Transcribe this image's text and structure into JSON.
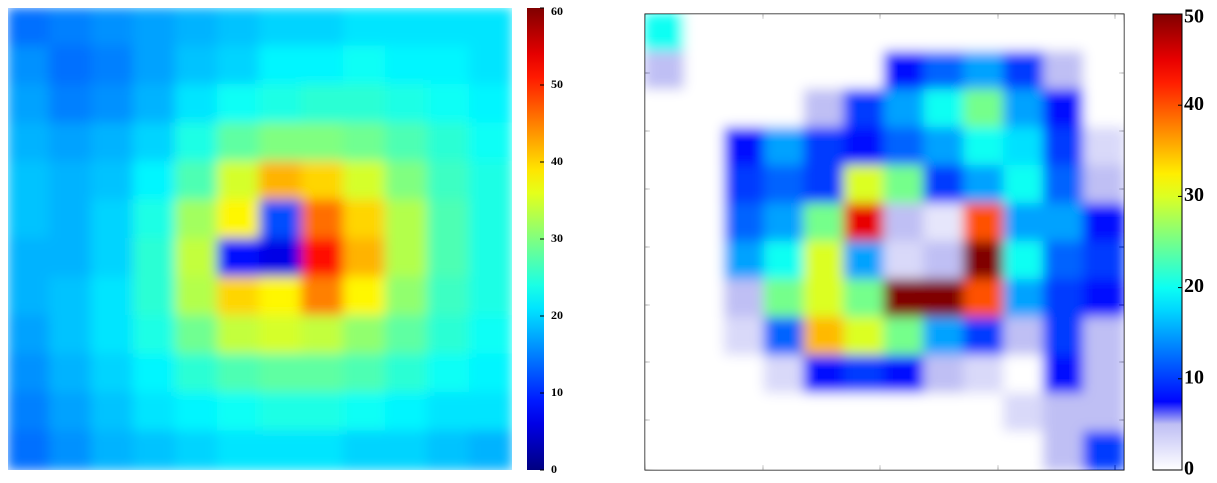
{
  "chart_data": [
    {
      "type": "heatmap",
      "colormap": "jet",
      "clim": [
        0,
        60
      ],
      "cticks": [
        0,
        10,
        20,
        30,
        40,
        50,
        60
      ],
      "z": [
        [
          14,
          15,
          16,
          17,
          18,
          19,
          20,
          20,
          21,
          21,
          21,
          21
        ],
        [
          16,
          14,
          15,
          17,
          19,
          20,
          22,
          22,
          23,
          22,
          22,
          21
        ],
        [
          17,
          15,
          16,
          18,
          21,
          23,
          24,
          25,
          25,
          24,
          23,
          22
        ],
        [
          18,
          17,
          18,
          20,
          24,
          28,
          30,
          30,
          29,
          27,
          25,
          23
        ],
        [
          19,
          18,
          19,
          22,
          27,
          35,
          42,
          40,
          35,
          30,
          26,
          24
        ],
        [
          19,
          18,
          20,
          24,
          32,
          38,
          12,
          46,
          40,
          33,
          27,
          24
        ],
        [
          18,
          18,
          20,
          25,
          34,
          8,
          6,
          52,
          42,
          33,
          27,
          24
        ],
        [
          18,
          19,
          21,
          25,
          33,
          40,
          38,
          45,
          38,
          31,
          26,
          24
        ],
        [
          17,
          19,
          21,
          24,
          29,
          34,
          35,
          34,
          31,
          28,
          25,
          23
        ],
        [
          16,
          18,
          20,
          22,
          25,
          27,
          28,
          28,
          27,
          25,
          23,
          22
        ],
        [
          15,
          17,
          19,
          21,
          22,
          23,
          24,
          24,
          23,
          22,
          21,
          21
        ],
        [
          14,
          16,
          18,
          19,
          20,
          21,
          21,
          21,
          20,
          20,
          19,
          18
        ]
      ]
    },
    {
      "type": "heatmap",
      "colormap": "white-jet",
      "clim": [
        0,
        50
      ],
      "cticks": [
        0,
        10,
        20,
        30,
        40,
        50
      ],
      "z": [
        [
          20,
          0,
          0,
          0,
          0,
          0,
          0,
          0,
          0,
          0,
          0,
          0
        ],
        [
          5,
          0,
          0,
          0,
          0,
          0,
          8,
          12,
          15,
          10,
          5,
          0
        ],
        [
          0,
          0,
          0,
          0,
          5,
          10,
          15,
          20,
          25,
          15,
          8,
          0
        ],
        [
          0,
          0,
          8,
          15,
          10,
          8,
          12,
          15,
          20,
          18,
          10,
          3
        ],
        [
          0,
          0,
          10,
          12,
          10,
          30,
          25,
          10,
          15,
          20,
          12,
          5
        ],
        [
          0,
          0,
          12,
          15,
          25,
          45,
          5,
          2,
          40,
          15,
          15,
          8
        ],
        [
          0,
          0,
          15,
          20,
          30,
          15,
          3,
          5,
          50,
          20,
          12,
          10
        ],
        [
          0,
          0,
          5,
          25,
          30,
          25,
          50,
          50,
          40,
          15,
          10,
          8
        ],
        [
          0,
          0,
          3,
          12,
          35,
          30,
          25,
          15,
          10,
          5,
          10,
          5
        ],
        [
          0,
          0,
          0,
          3,
          8,
          10,
          8,
          5,
          3,
          0,
          8,
          5
        ],
        [
          0,
          0,
          0,
          0,
          0,
          0,
          0,
          0,
          0,
          3,
          5,
          5
        ],
        [
          0,
          0,
          0,
          0,
          0,
          0,
          0,
          0,
          0,
          0,
          5,
          10
        ]
      ]
    }
  ]
}
